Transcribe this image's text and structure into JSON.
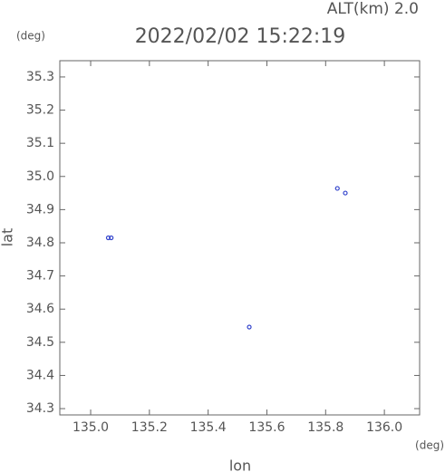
{
  "chart_data": {
    "type": "scatter",
    "title": "2022/02/02 15:22:19",
    "subtitle": "ALT(km)  2.0",
    "y_unit": "(deg)",
    "x_unit": "(deg)",
    "x_label": "lon",
    "y_label": "lat",
    "x": [
      135.06,
      135.07,
      135.54,
      135.84,
      135.867
    ],
    "y": [
      34.815,
      34.815,
      34.546,
      34.964,
      34.95
    ],
    "color": "#3344cc",
    "xlim": [
      134.895,
      136.12
    ],
    "ylim": [
      34.281,
      35.349
    ],
    "xticks": [
      {
        "value": 135.0,
        "label": "135.0"
      },
      135.2,
      135.4,
      135.6,
      135.8,
      {
        "value": 136.0,
        "label": "136.0"
      }
    ],
    "yticks": [
      35.3,
      35.2,
      35.1,
      {
        "value": 35.0,
        "label": "35.0"
      },
      34.9,
      34.8,
      34.7,
      34.6,
      34.5,
      34.4,
      34.3
    ]
  }
}
